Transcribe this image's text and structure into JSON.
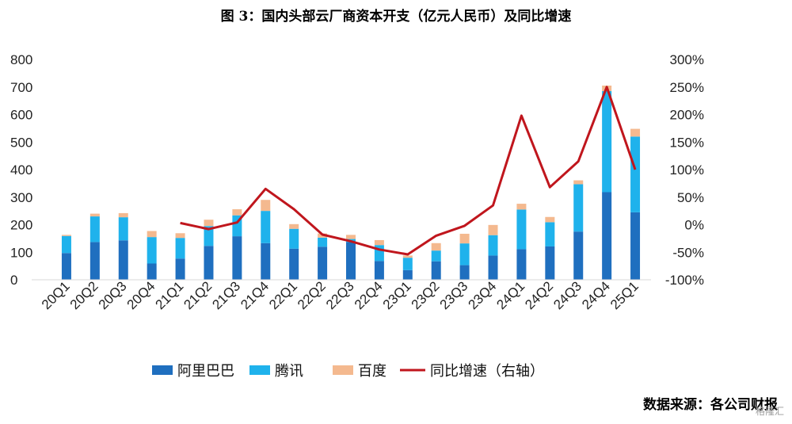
{
  "title": "图 3：国内头部云厂商资本开支（亿元人民币）及同比增速",
  "source": "数据来源：各公司财报",
  "watermark": "格隆汇",
  "chart_data": {
    "type": "bar",
    "stacked": true,
    "categories": [
      "20Q1",
      "20Q2",
      "20Q3",
      "20Q4",
      "21Q1",
      "21Q2",
      "21Q3",
      "21Q4",
      "22Q1",
      "22Q2",
      "22Q3",
      "22Q4",
      "23Q1",
      "23Q2",
      "23Q3",
      "23Q4",
      "24Q1",
      "24Q2",
      "24Q3",
      "24Q4",
      "25Q1"
    ],
    "series": [
      {
        "name": "阿里巴巴",
        "type": "bar",
        "axis": "left",
        "color": "#1f6fbf",
        "values": [
          97,
          137,
          143,
          59,
          77,
          123,
          158,
          133,
          113,
          120,
          137,
          68,
          35,
          67,
          53,
          88,
          111,
          121,
          175,
          318,
          245
        ]
      },
      {
        "name": "腾讯",
        "type": "bar",
        "axis": "left",
        "color": "#1fb2ec",
        "values": [
          62,
          93,
          84,
          96,
          75,
          72,
          76,
          117,
          72,
          33,
          11,
          58,
          45,
          39,
          79,
          74,
          144,
          88,
          172,
          367,
          275
        ]
      },
      {
        "name": "百度",
        "type": "bar",
        "axis": "left",
        "color": "#f4b98f",
        "values": [
          4,
          10,
          15,
          22,
          17,
          23,
          22,
          40,
          17,
          15,
          15,
          18,
          8,
          27,
          35,
          37,
          21,
          19,
          14,
          20,
          28
        ]
      },
      {
        "name": "同比增速（右轴）",
        "type": "line",
        "axis": "right",
        "color": "#c0161d",
        "values": [
          null,
          null,
          null,
          null,
          3,
          -8,
          4,
          65,
          28,
          -18,
          -30,
          -45,
          -54,
          -20,
          -2,
          35,
          198,
          68,
          115,
          250,
          100
        ]
      }
    ],
    "left_axis": {
      "ticks": [
        "0",
        "100",
        "200",
        "300",
        "400",
        "500",
        "600",
        "700",
        "800"
      ],
      "min": 0,
      "max": 800
    },
    "right_axis": {
      "ticks": [
        "-100%",
        "-50%",
        "0%",
        "50%",
        "100%",
        "150%",
        "200%",
        "250%",
        "300%"
      ],
      "min": -100,
      "max": 300
    },
    "legend_position": "bottom",
    "grid": false
  }
}
